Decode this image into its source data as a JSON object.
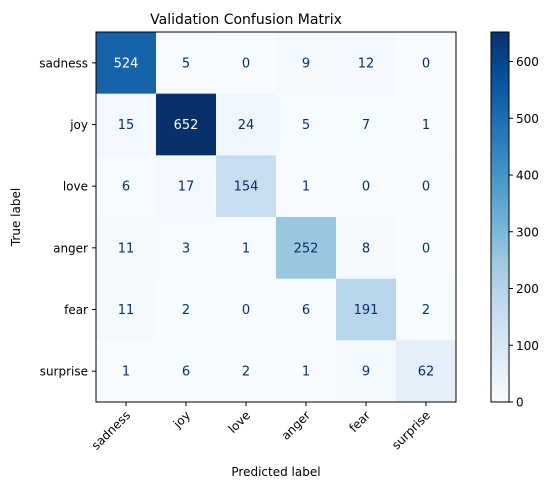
{
  "chart_data": {
    "type": "heatmap",
    "title": "Validation Confusion Matrix",
    "xlabel": "Predicted label",
    "ylabel": "True label",
    "x_categories": [
      "sadness",
      "joy",
      "love",
      "anger",
      "fear",
      "surprise"
    ],
    "y_categories": [
      "sadness",
      "joy",
      "love",
      "anger",
      "fear",
      "surprise"
    ],
    "values": [
      [
        524,
        5,
        0,
        9,
        12,
        0
      ],
      [
        15,
        652,
        24,
        5,
        7,
        1
      ],
      [
        6,
        17,
        154,
        1,
        0,
        0
      ],
      [
        11,
        3,
        1,
        252,
        8,
        0
      ],
      [
        11,
        2,
        0,
        6,
        191,
        2
      ],
      [
        1,
        6,
        2,
        1,
        9,
        62
      ]
    ],
    "colormap": "Blues",
    "color_range": [
      0,
      652
    ],
    "colorbar_ticks": [
      0,
      100,
      200,
      300,
      400,
      500,
      600
    ],
    "colors": {
      "low": "#f7fbff",
      "high": "#08306b"
    }
  }
}
